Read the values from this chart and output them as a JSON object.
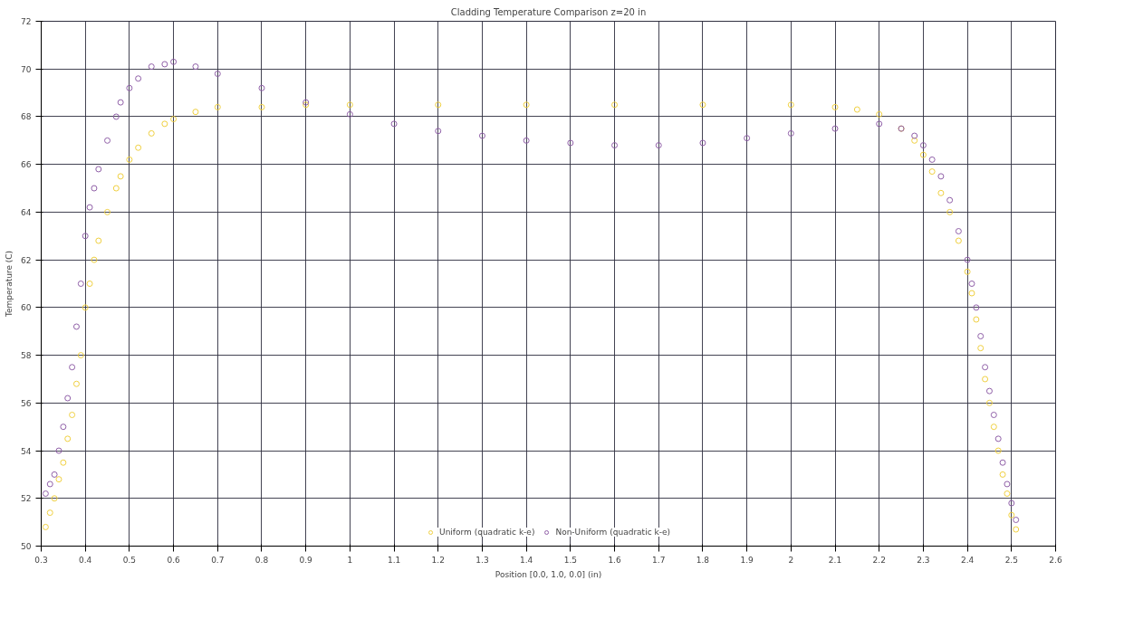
{
  "chart_data": {
    "type": "scatter",
    "title": "Cladding Temperature Comparison z=20 in",
    "xlabel": "Position [0.0, 1.0, 0.0] (in)",
    "ylabel": "Temperature (C)",
    "xlim": [
      0.3,
      2.6
    ],
    "xticks": [
      0.3,
      0.4,
      0.5,
      0.6,
      0.7,
      0.8,
      0.9,
      1,
      1.1,
      1.2,
      1.3,
      1.4,
      1.5,
      1.6,
      1.7,
      1.8,
      1.9,
      2,
      2.1,
      2.2,
      2.3,
      2.4,
      2.5,
      2.6
    ],
    "ylim": [
      50,
      72
    ],
    "yticks": [
      50,
      52,
      54,
      56,
      58,
      60,
      62,
      64,
      66,
      68,
      70,
      72
    ],
    "grid": true,
    "legend": "bottom",
    "marker": "circle",
    "series": [
      {
        "name": "Uniform (quadratic k-e)",
        "color": "#f0d040",
        "x": [
          0.31,
          0.32,
          0.33,
          0.34,
          0.35,
          0.36,
          0.37,
          0.38,
          0.39,
          0.4,
          0.41,
          0.42,
          0.43,
          0.45,
          0.47,
          0.48,
          0.5,
          0.52,
          0.55,
          0.58,
          0.6,
          0.65,
          0.7,
          0.8,
          0.9,
          1.0,
          1.2,
          1.4,
          1.6,
          1.8,
          2.0,
          2.1,
          2.15,
          2.2,
          2.25,
          2.28,
          2.3,
          2.32,
          2.34,
          2.36,
          2.38,
          2.4,
          2.41,
          2.42,
          2.43,
          2.44,
          2.45,
          2.46,
          2.47,
          2.48,
          2.49,
          2.5,
          2.51
        ],
        "values": [
          50.8,
          51.4,
          52,
          52.8,
          53.5,
          54.5,
          55.5,
          56.8,
          58,
          60,
          61,
          62,
          62.8,
          64,
          65,
          65.5,
          66.2,
          66.7,
          67.3,
          67.7,
          67.9,
          68.2,
          68.4,
          68.4,
          68.5,
          68.5,
          68.5,
          68.5,
          68.5,
          68.5,
          68.5,
          68.4,
          68.3,
          68.1,
          67.5,
          67,
          66.4,
          65.7,
          64.8,
          64,
          62.8,
          61.5,
          60.6,
          59.5,
          58.3,
          57,
          56,
          55,
          54,
          53,
          52.2,
          51.3,
          50.7
        ]
      },
      {
        "name": "Non-Uniform (quadratic k-e)",
        "color": "#9060a8",
        "x": [
          0.31,
          0.32,
          0.33,
          0.34,
          0.35,
          0.36,
          0.37,
          0.38,
          0.39,
          0.4,
          0.41,
          0.42,
          0.43,
          0.45,
          0.47,
          0.48,
          0.5,
          0.52,
          0.55,
          0.58,
          0.6,
          0.65,
          0.7,
          0.8,
          0.9,
          1.0,
          1.1,
          1.2,
          1.3,
          1.4,
          1.5,
          1.6,
          1.7,
          1.8,
          1.9,
          2.0,
          2.1,
          2.2,
          2.25,
          2.28,
          2.3,
          2.32,
          2.34,
          2.36,
          2.38,
          2.4,
          2.41,
          2.42,
          2.43,
          2.44,
          2.45,
          2.46,
          2.47,
          2.48,
          2.49,
          2.5,
          2.51
        ],
        "values": [
          52.2,
          52.6,
          53,
          54,
          55,
          56.2,
          57.5,
          59.2,
          61,
          63,
          64.2,
          65,
          65.8,
          67,
          68,
          68.6,
          69.2,
          69.6,
          70.1,
          70.2,
          70.3,
          70.1,
          69.8,
          69.2,
          68.6,
          68.1,
          67.7,
          67.4,
          67.2,
          67.0,
          66.9,
          66.8,
          66.8,
          66.9,
          67.1,
          67.3,
          67.5,
          67.7,
          67.5,
          67.2,
          66.8,
          66.2,
          65.5,
          64.5,
          63.2,
          62,
          61,
          60,
          58.8,
          57.5,
          56.5,
          55.5,
          54.5,
          53.5,
          52.6,
          51.8,
          51.1
        ]
      }
    ]
  }
}
